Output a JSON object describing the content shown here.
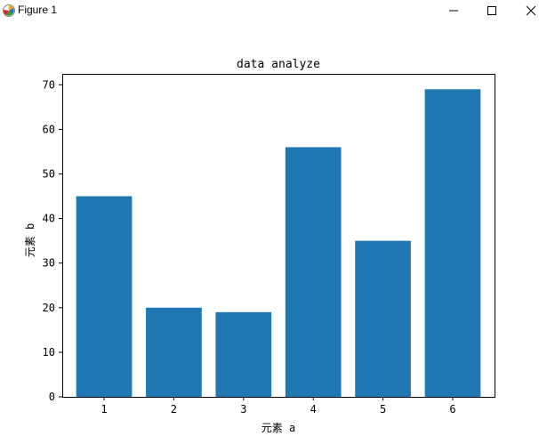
{
  "window": {
    "title": "Figure 1",
    "icon": "matplotlib-icon",
    "controls": {
      "minimize": "minimize-icon",
      "maximize": "maximize-icon",
      "close": "close-icon"
    }
  },
  "colors": {
    "bar": "#1f77b4",
    "axes": "#000000",
    "background": "#ffffff"
  },
  "chart_data": {
    "type": "bar",
    "title": "data analyze",
    "xlabel": "元素 a",
    "ylabel": "元素 b",
    "categories": [
      "1",
      "2",
      "3",
      "4",
      "5",
      "6"
    ],
    "values": [
      45,
      20,
      19,
      56,
      35,
      69
    ],
    "ylim": [
      0,
      72.45
    ],
    "yticks": [
      0,
      10,
      20,
      30,
      40,
      50,
      60,
      70
    ],
    "grid": false
  }
}
